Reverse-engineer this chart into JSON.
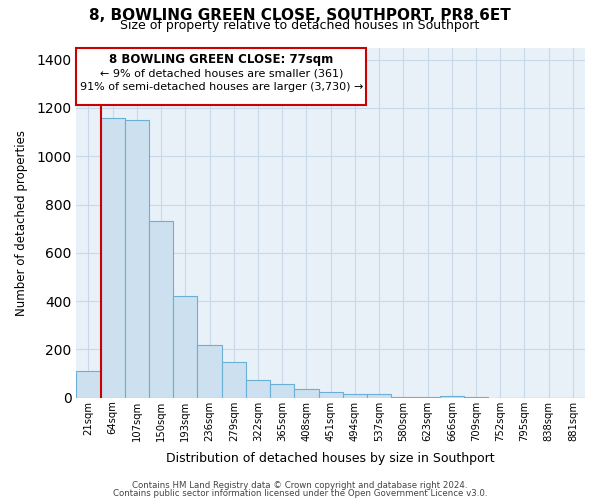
{
  "title": "8, BOWLING GREEN CLOSE, SOUTHPORT, PR8 6ET",
  "subtitle": "Size of property relative to detached houses in Southport",
  "xlabel": "Distribution of detached houses by size in Southport",
  "ylabel": "Number of detached properties",
  "categories": [
    "21sqm",
    "64sqm",
    "107sqm",
    "150sqm",
    "193sqm",
    "236sqm",
    "279sqm",
    "322sqm",
    "365sqm",
    "408sqm",
    "451sqm",
    "494sqm",
    "537sqm",
    "580sqm",
    "623sqm",
    "666sqm",
    "709sqm",
    "752sqm",
    "795sqm",
    "838sqm",
    "881sqm"
  ],
  "values": [
    110,
    1160,
    1150,
    730,
    420,
    220,
    150,
    75,
    55,
    38,
    22,
    15,
    15,
    5,
    5,
    7,
    3,
    0,
    0,
    0,
    0
  ],
  "bar_fill_color": "#cce0f0",
  "bar_edge_color": "#6baed6",
  "vline_x": 0.5,
  "vline_color": "#cc0000",
  "ylim": [
    0,
    1450
  ],
  "yticks": [
    0,
    200,
    400,
    600,
    800,
    1000,
    1200,
    1400
  ],
  "annotation_title": "8 BOWLING GREEN CLOSE: 77sqm",
  "annotation_line1": "← 9% of detached houses are smaller (361)",
  "annotation_line2": "91% of semi-detached houses are larger (3,730) →",
  "annotation_box_color": "#ffffff",
  "annotation_box_edgecolor": "#cc0000",
  "footer_line1": "Contains HM Land Registry data © Crown copyright and database right 2024.",
  "footer_line2": "Contains public sector information licensed under the Open Government Licence v3.0.",
  "background_color": "#ffffff",
  "grid_color": "#c8d8e8"
}
